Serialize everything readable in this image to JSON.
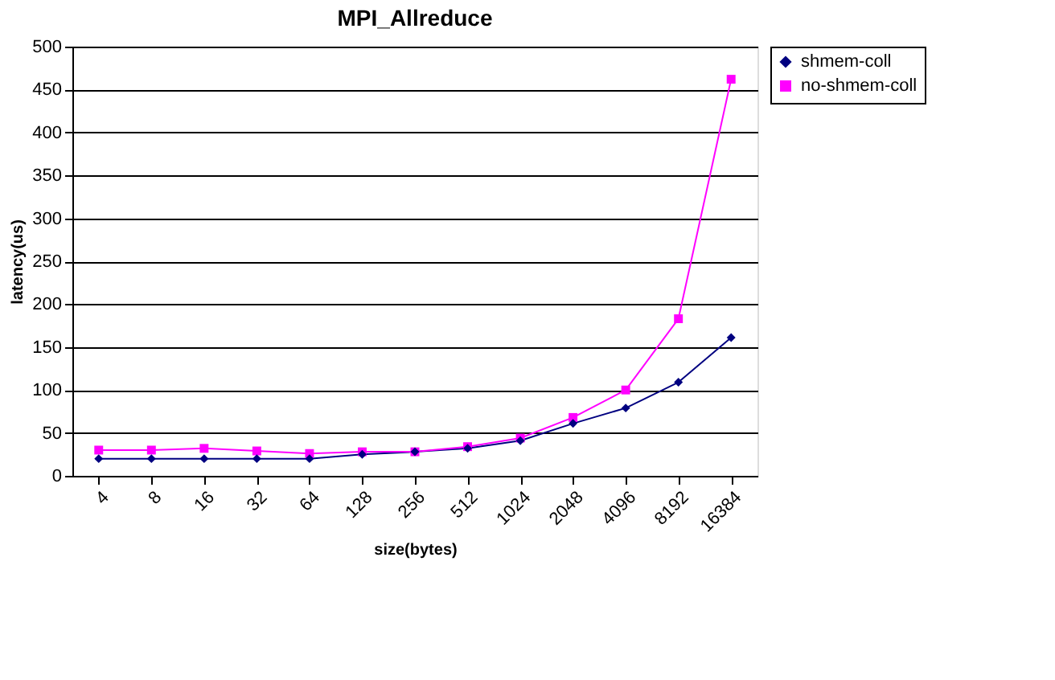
{
  "chart_data": {
    "type": "line",
    "title": "MPI_Allreduce",
    "xlabel": "size(bytes)",
    "ylabel": "latency(us)",
    "categories": [
      "4",
      "8",
      "16",
      "32",
      "64",
      "128",
      "256",
      "512",
      "1024",
      "2048",
      "4096",
      "8192",
      "16384"
    ],
    "series": [
      {
        "name": "shmem-coll",
        "color": "#000080",
        "marker": "diamond",
        "values": [
          20,
          20,
          20,
          20,
          20,
          25,
          28,
          32,
          41,
          61,
          79,
          109,
          161
        ]
      },
      {
        "name": "no-shmem-coll",
        "color": "#ff00ff",
        "marker": "square",
        "values": [
          30,
          30,
          32,
          29,
          26,
          28,
          28,
          34,
          44,
          68,
          100,
          183,
          462
        ]
      }
    ],
    "ylim": [
      0,
      500
    ],
    "yticks": [
      0,
      50,
      100,
      150,
      200,
      250,
      300,
      350,
      400,
      450,
      500
    ],
    "grid": "y",
    "legend": "right"
  }
}
